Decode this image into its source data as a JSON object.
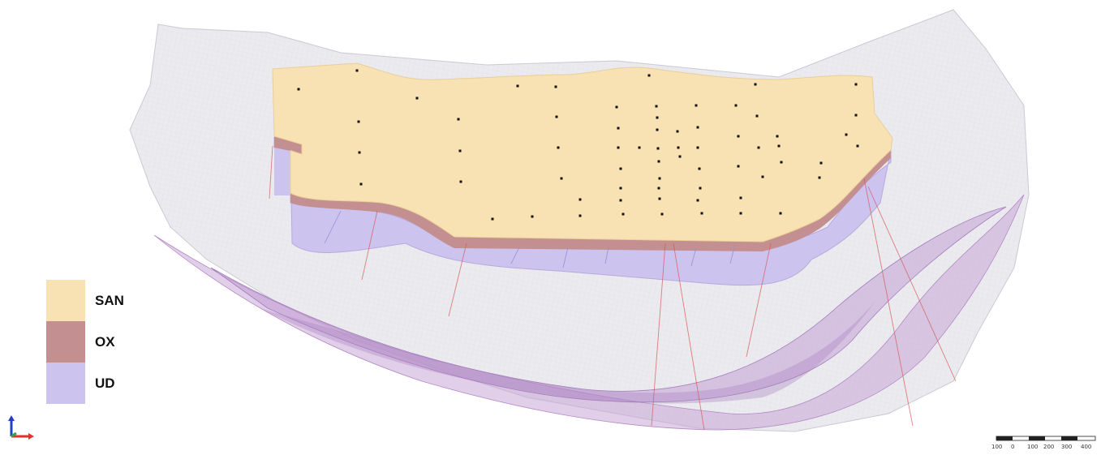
{
  "legend": {
    "items": [
      {
        "label": "SAN",
        "color": "#f8e2b4"
      },
      {
        "label": "OX",
        "color": "#c48f90"
      },
      {
        "label": "UD",
        "color": "#cdc3ef"
      }
    ]
  },
  "scale_bar": {
    "labels": [
      "100",
      "0",
      "100",
      "200",
      "300",
      "400"
    ]
  },
  "axis_triad": {
    "icon": "xyz-axes-icon",
    "colors": {
      "x": "#e0322a",
      "y": "#2aa84a",
      "z": "#2140c8"
    }
  },
  "colors": {
    "surface_mesh": "#c8c8d4",
    "lower_surface": "#b88ac0",
    "drillholes": "#d65a5a",
    "collars": "#111111"
  }
}
